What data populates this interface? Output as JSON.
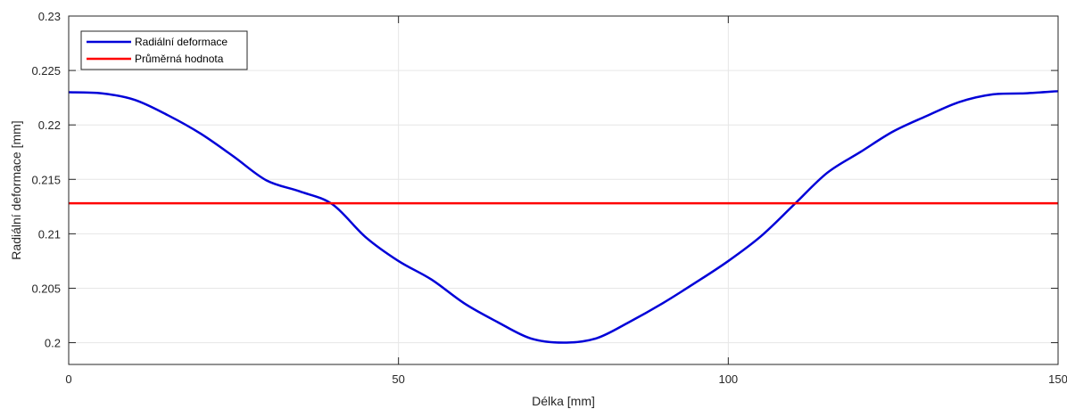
{
  "chart_data": {
    "type": "line",
    "xlabel": "Délka [mm]",
    "ylabel": "Radiální deformace [mm]",
    "xlim": [
      0,
      150
    ],
    "ylim": [
      0.198,
      0.23
    ],
    "xticks": [
      0,
      50,
      100,
      150
    ],
    "xtick_labels": [
      "0",
      "50",
      "100",
      "150"
    ],
    "yticks": [
      0.2,
      0.205,
      0.21,
      0.215,
      0.22,
      0.225,
      0.23
    ],
    "ytick_labels": [
      "0.2",
      "0.205",
      "0.21",
      "0.215",
      "0.22",
      "0.225",
      "0.23"
    ],
    "grid": true,
    "legend_position": "top-left",
    "series": [
      {
        "name": "Radiální deformace",
        "color": "#0000d8",
        "x": [
          0,
          5,
          10,
          15,
          20,
          25,
          30,
          35,
          40,
          45,
          50,
          55,
          60,
          65,
          70,
          75,
          80,
          85,
          90,
          95,
          100,
          105,
          110,
          115,
          120,
          125,
          130,
          135,
          140,
          145,
          150
        ],
        "y": [
          0.223,
          0.2229,
          0.2223,
          0.2209,
          0.2192,
          0.2171,
          0.2149,
          0.2139,
          0.2127,
          0.2097,
          0.2075,
          0.2058,
          0.2036,
          0.2019,
          0.2004,
          0.2,
          0.2004,
          0.2019,
          0.2036,
          0.2055,
          0.2075,
          0.2098,
          0.2127,
          0.2156,
          0.2175,
          0.2194,
          0.2208,
          0.2221,
          0.2228,
          0.2229,
          0.2231
        ]
      },
      {
        "name": "Průměrná hodnota",
        "color": "#ff0000",
        "x": [
          0,
          150
        ],
        "y": [
          0.2128,
          0.2128
        ]
      }
    ]
  }
}
